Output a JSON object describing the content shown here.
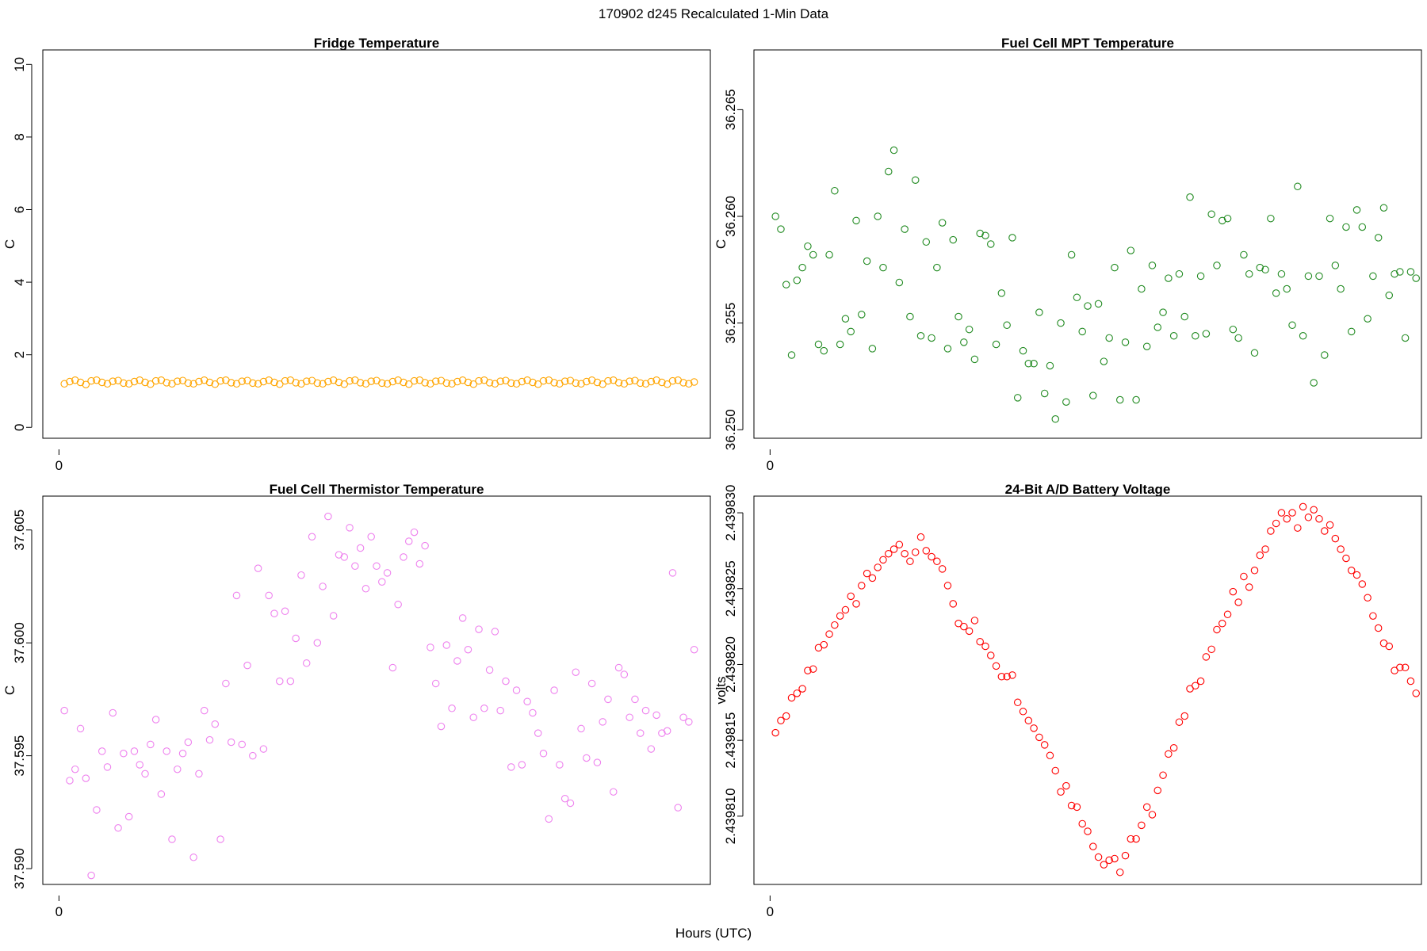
{
  "figure": {
    "title": "170902   d245   Recalculated 1-Min Data",
    "xlabel": "Hours (UTC)"
  },
  "chart_data": [
    {
      "type": "scatter",
      "title": "Fridge Temperature",
      "ylabel": "C",
      "color": "#FFA500",
      "xlim": [
        -0.3,
        12.1
      ],
      "ylim": [
        -0.3,
        10.4
      ],
      "xticks": [
        0
      ],
      "xticklabels": [
        "0"
      ],
      "yticks": [
        0,
        2,
        4,
        6,
        8,
        10
      ],
      "yticklabels": [
        "0",
        "2",
        "4",
        "6",
        "8",
        "10"
      ],
      "x": [
        0.1,
        0.2,
        0.3,
        0.4,
        0.5,
        0.6,
        0.7,
        0.8,
        0.9,
        1.0,
        1.1,
        1.2,
        1.3,
        1.4,
        1.5,
        1.6,
        1.7,
        1.8,
        1.9,
        2.0,
        2.1,
        2.2,
        2.3,
        2.4,
        2.5,
        2.6,
        2.7,
        2.8,
        2.9,
        3.0,
        3.1,
        3.2,
        3.3,
        3.4,
        3.5,
        3.6,
        3.7,
        3.8,
        3.9,
        4.0,
        4.1,
        4.2,
        4.3,
        4.4,
        4.5,
        4.6,
        4.7,
        4.8,
        4.9,
        5.0,
        5.1,
        5.2,
        5.3,
        5.4,
        5.5,
        5.6,
        5.7,
        5.8,
        5.9,
        6.0,
        6.1,
        6.2,
        6.3,
        6.4,
        6.5,
        6.6,
        6.7,
        6.8,
        6.9,
        7.0,
        7.1,
        7.2,
        7.3,
        7.4,
        7.5,
        7.6,
        7.7,
        7.8,
        7.9,
        8.0,
        8.1,
        8.2,
        8.3,
        8.4,
        8.5,
        8.6,
        8.7,
        8.8,
        8.9,
        9.0,
        9.1,
        9.2,
        9.3,
        9.4,
        9.5,
        9.6,
        9.7,
        9.8,
        9.9,
        10.0,
        10.1,
        10.2,
        10.3,
        10.4,
        10.5,
        10.6,
        10.7,
        10.8,
        10.9,
        11.0,
        11.1,
        11.2,
        11.3,
        11.4,
        11.5,
        11.6,
        11.7,
        11.8
      ],
      "y": [
        1.2,
        1.26,
        1.3,
        1.24,
        1.18,
        1.28,
        1.3,
        1.24,
        1.2,
        1.27,
        1.29,
        1.22,
        1.2,
        1.26,
        1.3,
        1.24,
        1.19,
        1.28,
        1.3,
        1.23,
        1.2,
        1.27,
        1.29,
        1.22,
        1.2,
        1.26,
        1.3,
        1.24,
        1.19,
        1.28,
        1.3,
        1.23,
        1.2,
        1.27,
        1.29,
        1.22,
        1.2,
        1.26,
        1.3,
        1.24,
        1.19,
        1.28,
        1.3,
        1.23,
        1.2,
        1.27,
        1.29,
        1.22,
        1.2,
        1.26,
        1.3,
        1.24,
        1.19,
        1.28,
        1.3,
        1.23,
        1.2,
        1.27,
        1.29,
        1.22,
        1.2,
        1.26,
        1.3,
        1.24,
        1.19,
        1.28,
        1.3,
        1.23,
        1.2,
        1.27,
        1.29,
        1.22,
        1.2,
        1.26,
        1.3,
        1.24,
        1.19,
        1.28,
        1.3,
        1.23,
        1.2,
        1.27,
        1.29,
        1.22,
        1.2,
        1.26,
        1.3,
        1.24,
        1.19,
        1.28,
        1.3,
        1.23,
        1.2,
        1.27,
        1.29,
        1.22,
        1.2,
        1.26,
        1.3,
        1.24,
        1.19,
        1.28,
        1.3,
        1.23,
        1.2,
        1.27,
        1.29,
        1.22,
        1.2,
        1.26,
        1.3,
        1.24,
        1.19,
        1.28,
        1.3,
        1.23,
        1.2,
        1.25
      ]
    },
    {
      "type": "scatter",
      "title": "Fuel Cell MPT Temperature",
      "ylabel": "C",
      "color": "#228B22",
      "xlim": [
        -0.3,
        12.1
      ],
      "ylim": [
        36.2496,
        36.2678
      ],
      "xticks": [
        0
      ],
      "xticklabels": [
        "0"
      ],
      "yticks": [
        36.25,
        36.255,
        36.26,
        36.265
      ],
      "yticklabels": [
        "36.250",
        "36.255",
        "36.260",
        "36.265"
      ],
      "x": [
        0.1,
        0.2,
        0.3,
        0.4,
        0.5,
        0.6,
        0.7,
        0.8,
        0.9,
        1.0,
        1.1,
        1.2,
        1.3,
        1.4,
        1.5,
        1.6,
        1.7,
        1.8,
        1.9,
        2.0,
        2.1,
        2.2,
        2.3,
        2.4,
        2.5,
        2.6,
        2.7,
        2.8,
        2.9,
        3.0,
        3.1,
        3.2,
        3.3,
        3.4,
        3.5,
        3.6,
        3.7,
        3.8,
        3.9,
        4.0,
        4.1,
        4.2,
        4.3,
        4.4,
        4.5,
        4.6,
        4.7,
        4.8,
        4.9,
        5.0,
        5.1,
        5.2,
        5.3,
        5.4,
        5.5,
        5.6,
        5.7,
        5.8,
        5.9,
        6.0,
        6.1,
        6.2,
        6.3,
        6.4,
        6.5,
        6.6,
        6.7,
        6.8,
        6.9,
        7.0,
        7.1,
        7.2,
        7.3,
        7.4,
        7.5,
        7.6,
        7.7,
        7.8,
        7.9,
        8.0,
        8.1,
        8.2,
        8.3,
        8.4,
        8.5,
        8.6,
        8.7,
        8.8,
        8.9,
        9.0,
        9.1,
        9.2,
        9.3,
        9.4,
        9.5,
        9.6,
        9.7,
        9.8,
        9.9,
        10.0,
        10.1,
        10.2,
        10.3,
        10.4,
        10.5,
        10.6,
        10.7,
        10.8,
        10.9,
        11.0,
        11.1,
        11.2,
        11.3,
        11.4,
        11.5,
        11.6,
        11.7,
        11.8,
        11.9,
        12.0
      ],
      "y": [
        36.26,
        36.2594,
        36.2568,
        36.2535,
        36.257,
        36.2576,
        36.2586,
        36.2582,
        36.254,
        36.2537,
        36.2582,
        36.2612,
        36.254,
        36.2552,
        36.2546,
        36.2598,
        36.2554,
        36.2579,
        36.2538,
        36.26,
        36.2576,
        36.2621,
        36.2631,
        36.2569,
        36.2594,
        36.2553,
        36.2617,
        36.2544,
        36.2588,
        36.2543,
        36.2576,
        36.2597,
        36.2538,
        36.2589,
        36.2553,
        36.2541,
        36.2547,
        36.2533,
        36.2592,
        36.2591,
        36.2587,
        36.254,
        36.2564,
        36.2549,
        36.259,
        36.2515,
        36.2537,
        36.2531,
        36.2531,
        36.2555,
        36.2517,
        36.253,
        36.2505,
        36.255,
        36.2513,
        36.2582,
        36.2562,
        36.2546,
        36.2558,
        36.2516,
        36.2559,
        36.2532,
        36.2543,
        36.2576,
        36.2514,
        36.2541,
        36.2584,
        36.2514,
        36.2566,
        36.2539,
        36.2577,
        36.2548,
        36.2555,
        36.2571,
        36.2544,
        36.2573,
        36.2553,
        36.2609,
        36.2544,
        36.2572,
        36.2545,
        36.2601,
        36.2577,
        36.2598,
        36.2599,
        36.2547,
        36.2543,
        36.2582,
        36.2573,
        36.2536,
        36.2576,
        36.2575,
        36.2599,
        36.2564,
        36.2573,
        36.2566,
        36.2549,
        36.2614,
        36.2544,
        36.2572,
        36.2522,
        36.2572,
        36.2535,
        36.2599,
        36.2577,
        36.2566,
        36.2595,
        36.2546,
        36.2603,
        36.2595,
        36.2552,
        36.2572,
        36.259,
        36.2604,
        36.2563,
        36.2573,
        36.2574,
        36.2543,
        36.2574,
        36.2571
      ]
    },
    {
      "type": "scatter",
      "title": "Fuel Cell Thermistor Temperature",
      "ylabel": "C",
      "color": "#EE82EE",
      "xlim": [
        -0.3,
        12.1
      ],
      "ylim": [
        37.5893,
        37.6065
      ],
      "xticks": [
        0
      ],
      "xticklabels": [
        "0"
      ],
      "yticks": [
        37.59,
        37.595,
        37.6,
        37.605
      ],
      "yticklabels": [
        "37.590",
        "37.595",
        "37.600",
        "37.605"
      ],
      "x": [
        0.1,
        0.2,
        0.3,
        0.4,
        0.5,
        0.6,
        0.7,
        0.8,
        0.9,
        1.0,
        1.1,
        1.2,
        1.3,
        1.4,
        1.5,
        1.6,
        1.7,
        1.8,
        1.9,
        2.0,
        2.1,
        2.2,
        2.3,
        2.4,
        2.5,
        2.6,
        2.7,
        2.8,
        2.9,
        3.0,
        3.1,
        3.2,
        3.3,
        3.4,
        3.5,
        3.6,
        3.7,
        3.8,
        3.9,
        4.0,
        4.1,
        4.2,
        4.3,
        4.4,
        4.5,
        4.6,
        4.7,
        4.8,
        4.9,
        5.0,
        5.1,
        5.2,
        5.3,
        5.4,
        5.5,
        5.6,
        5.7,
        5.8,
        5.9,
        6.0,
        6.1,
        6.2,
        6.3,
        6.4,
        6.5,
        6.6,
        6.7,
        6.8,
        6.9,
        7.0,
        7.1,
        7.2,
        7.3,
        7.4,
        7.5,
        7.6,
        7.7,
        7.8,
        7.9,
        8.0,
        8.1,
        8.2,
        8.3,
        8.4,
        8.5,
        8.6,
        8.7,
        8.8,
        8.9,
        9.0,
        9.1,
        9.2,
        9.3,
        9.4,
        9.5,
        9.6,
        9.7,
        9.8,
        9.9,
        10.0,
        10.1,
        10.2,
        10.3,
        10.4,
        10.5,
        10.6,
        10.7,
        10.8,
        10.9,
        11.0,
        11.1,
        11.2,
        11.3,
        11.4,
        11.5,
        11.6,
        11.7,
        11.8
      ],
      "y": [
        37.597,
        37.5939,
        37.5944,
        37.5962,
        37.594,
        37.5897,
        37.5926,
        37.5952,
        37.5945,
        37.5969,
        37.5918,
        37.5951,
        37.5923,
        37.5952,
        37.5946,
        37.5942,
        37.5955,
        37.5966,
        37.5933,
        37.5952,
        37.5913,
        37.5944,
        37.5951,
        37.5956,
        37.5905,
        37.5942,
        37.597,
        37.5957,
        37.5964,
        37.5913,
        37.5982,
        37.5956,
        37.6021,
        37.5955,
        37.599,
        37.595,
        37.6033,
        37.5953,
        37.6021,
        37.6013,
        37.5983,
        37.6014,
        37.5983,
        37.6002,
        37.603,
        37.5991,
        37.6047,
        37.6,
        37.6025,
        37.6056,
        37.6012,
        37.6039,
        37.6038,
        37.6051,
        37.6034,
        37.6042,
        37.6024,
        37.6047,
        37.6034,
        37.6027,
        37.6031,
        37.5989,
        37.6017,
        37.6038,
        37.6045,
        37.6049,
        37.6035,
        37.6043,
        37.5998,
        37.5982,
        37.5963,
        37.5999,
        37.5971,
        37.5992,
        37.6011,
        37.5997,
        37.5967,
        37.6006,
        37.5971,
        37.5988,
        37.6005,
        37.597,
        37.5983,
        37.5945,
        37.5979,
        37.5946,
        37.5974,
        37.5969,
        37.596,
        37.5951,
        37.5922,
        37.5979,
        37.5946,
        37.5931,
        37.5929,
        37.5987,
        37.5962,
        37.5949,
        37.5982,
        37.5947,
        37.5965,
        37.5975,
        37.5934,
        37.5989,
        37.5986,
        37.5967,
        37.5975,
        37.596,
        37.597,
        37.5953,
        37.5968,
        37.596,
        37.5961,
        37.6031,
        37.5927,
        37.5967,
        37.5965,
        37.5997
      ]
    },
    {
      "type": "scatter",
      "title": "24-Bit A/D Battery Voltage",
      "ylabel": "volts",
      "color": "#FF0000",
      "xlim": [
        -0.3,
        12.1
      ],
      "ylim": [
        2.4398055,
        2.4398311
      ],
      "xticks": [
        0
      ],
      "xticklabels": [
        "0"
      ],
      "yticks": [
        2.43981,
        2.439815,
        2.43982,
        2.439825,
        2.43983
      ],
      "yticklabels": [
        "2.439810",
        "2.439815",
        "2.439820",
        "2.439825",
        "2.439830"
      ],
      "x": [
        0.1,
        0.2,
        0.3,
        0.4,
        0.5,
        0.6,
        0.7,
        0.8,
        0.9,
        1.0,
        1.1,
        1.2,
        1.3,
        1.4,
        1.5,
        1.6,
        1.7,
        1.8,
        1.9,
        2.0,
        2.1,
        2.2,
        2.3,
        2.4,
        2.5,
        2.6,
        2.7,
        2.8,
        2.9,
        3.0,
        3.1,
        3.2,
        3.3,
        3.4,
        3.5,
        3.6,
        3.7,
        3.8,
        3.9,
        4.0,
        4.1,
        4.2,
        4.3,
        4.4,
        4.5,
        4.6,
        4.7,
        4.8,
        4.9,
        5.0,
        5.1,
        5.2,
        5.3,
        5.4,
        5.5,
        5.6,
        5.7,
        5.8,
        5.9,
        6.0,
        6.1,
        6.2,
        6.3,
        6.4,
        6.5,
        6.6,
        6.7,
        6.8,
        6.9,
        7.0,
        7.1,
        7.2,
        7.3,
        7.4,
        7.5,
        7.6,
        7.7,
        7.8,
        7.9,
        8.0,
        8.1,
        8.2,
        8.3,
        8.4,
        8.5,
        8.6,
        8.7,
        8.8,
        8.9,
        9.0,
        9.1,
        9.2,
        9.3,
        9.4,
        9.5,
        9.6,
        9.7,
        9.8,
        9.9,
        10.0,
        10.1,
        10.2,
        10.3,
        10.4,
        10.5,
        10.6,
        10.7,
        10.8,
        10.9,
        11.0,
        11.1,
        11.2,
        11.3,
        11.4,
        11.5,
        11.6,
        11.7,
        11.8,
        11.9,
        12.0
      ],
      "y": [
        2.4398155,
        2.4398163,
        2.4398166,
        2.4398178,
        2.4398181,
        2.4398184,
        2.4398196,
        2.4398197,
        2.4398211,
        2.4398213,
        2.439822,
        2.4398226,
        2.4398232,
        2.4398236,
        2.4398245,
        2.439824,
        2.4398252,
        2.439826,
        2.4398257,
        2.4398264,
        2.4398269,
        2.4398273,
        2.4398276,
        2.4398279,
        2.4398273,
        2.4398268,
        2.4398274,
        2.4398284,
        2.4398275,
        2.4398271,
        2.4398268,
        2.4398263,
        2.4398252,
        2.439824,
        2.4398227,
        2.4398225,
        2.4398222,
        2.4398229,
        2.4398215,
        2.4398212,
        2.4398206,
        2.4398199,
        2.4398192,
        2.4398192,
        2.4398193,
        2.4398175,
        2.4398169,
        2.4398163,
        2.4398158,
        2.4398152,
        2.4398147,
        2.439814,
        2.439813,
        2.4398116,
        2.439812,
        2.4398107,
        2.4398106,
        2.4398095,
        2.439809,
        2.439808,
        2.4398073,
        2.4398068,
        2.4398071,
        2.4398072,
        2.4398063,
        2.4398074,
        2.4398085,
        2.4398085,
        2.4398094,
        2.4398106,
        2.4398101,
        2.4398117,
        2.4398127,
        2.4398141,
        2.4398145,
        2.4398162,
        2.4398166,
        2.4398184,
        2.4398186,
        2.4398189,
        2.4398205,
        2.439821,
        2.4398223,
        2.4398227,
        2.4398233,
        2.4398248,
        2.4398241,
        2.4398258,
        2.4398251,
        2.4398262,
        2.4398272,
        2.4398276,
        2.4398288,
        2.4398293,
        2.43983,
        2.4398296,
        2.43983,
        2.439829,
        2.4398304,
        2.4398297,
        2.4398302,
        2.4398296,
        2.4398288,
        2.4398292,
        2.4398283,
        2.4398276,
        2.439827,
        2.4398262,
        2.4398259,
        2.4398253,
        2.4398244,
        2.4398232,
        2.4398224,
        2.4398214,
        2.4398212,
        2.4398196,
        2.4398198,
        2.4398198,
        2.4398189,
        2.4398181
      ]
    }
  ]
}
